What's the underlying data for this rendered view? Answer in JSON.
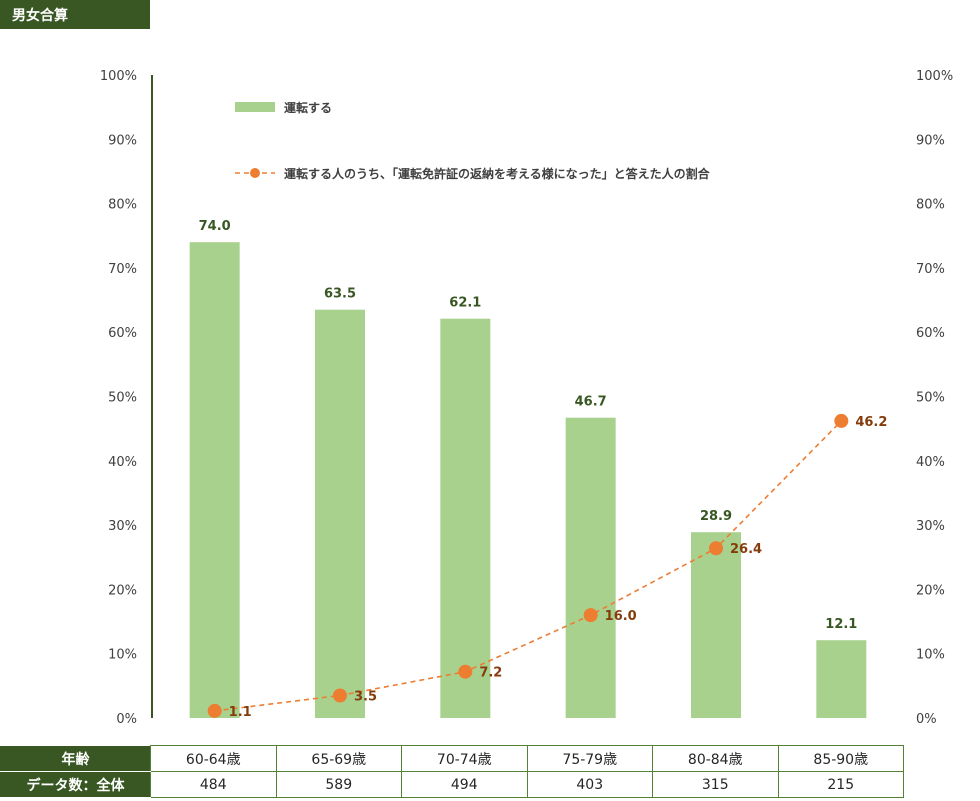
{
  "title": "男女合算",
  "chart_data": {
    "type": "bar",
    "categories": [
      "60-64歳",
      "65-69歳",
      "70-74歳",
      "75-79歳",
      "80-84歳",
      "85-90歳"
    ],
    "series": [
      {
        "name": "運転する",
        "type": "bar",
        "values": [
          74.0,
          63.5,
          62.1,
          46.7,
          28.9,
          12.1
        ],
        "color": "#a9d18e",
        "label_color": "#385723"
      },
      {
        "name": "運転する人のうち、「運転免許証の返納を考える様になった」と答えた人の割合",
        "type": "line",
        "values": [
          1.1,
          3.5,
          7.2,
          16.0,
          26.4,
          46.2
        ],
        "color": "#ed7d31",
        "label_color": "#843c0c",
        "line_style": "dashed",
        "marker": "circle"
      }
    ],
    "ylim": [
      0,
      100
    ],
    "yticks": [
      "0%",
      "10%",
      "20%",
      "30%",
      "40%",
      "50%",
      "60%",
      "70%",
      "80%",
      "90%",
      "100%"
    ],
    "y_axis_right": true,
    "grid": false,
    "legend": "top-left"
  },
  "table": {
    "row_headers": [
      "年齢",
      "データ数：全体"
    ],
    "ages": [
      "60-64歳",
      "65-69歳",
      "70-74歳",
      "75-79歳",
      "80-84歳",
      "85-90歳"
    ],
    "counts": [
      "484",
      "589",
      "494",
      "403",
      "315",
      "215"
    ]
  },
  "colors": {
    "header_bg": "#385723",
    "border": "#548235",
    "axis_line": "#385723"
  }
}
